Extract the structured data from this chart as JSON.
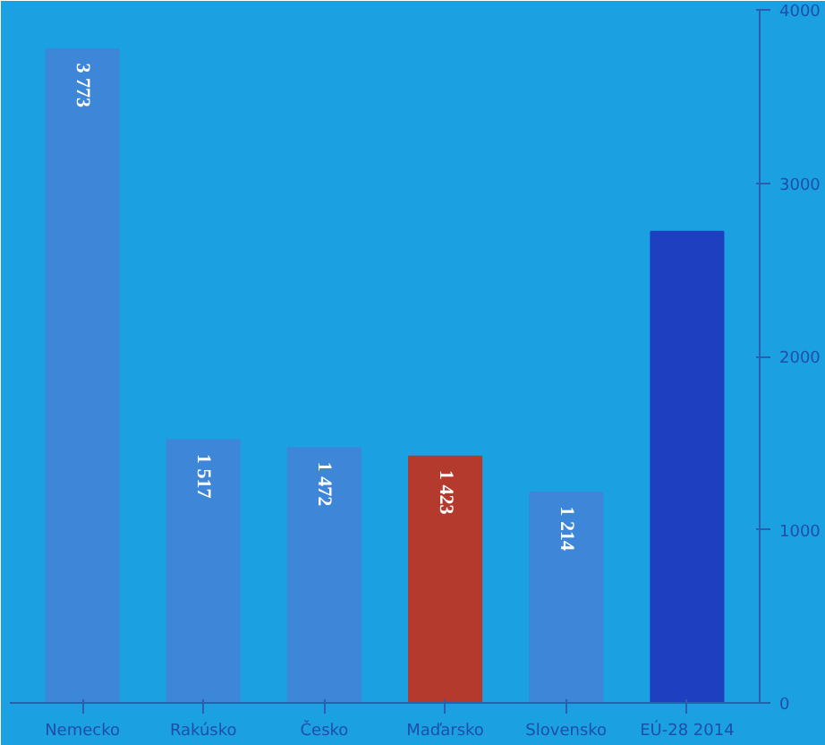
{
  "chart_data": {
    "type": "bar",
    "categories": [
      "Nemecko",
      "Rakúsko",
      "Česko",
      "Maďarsko",
      "Slovensko",
      "EÚ-28 2014"
    ],
    "values": [
      3773,
      1517,
      1472,
      1423,
      1214,
      2720
    ],
    "value_labels": [
      "3 773",
      "1 517",
      "1 472",
      "1 423",
      "1 214",
      null
    ],
    "colors": [
      "#3d86d8",
      "#3d86d8",
      "#3d86d8",
      "#b53a2e",
      "#3d86d8",
      "#1e3fbf"
    ],
    "ylim": [
      0,
      4000
    ],
    "yticks": [
      0,
      1000,
      2000,
      3000,
      4000
    ],
    "grid": false
  }
}
